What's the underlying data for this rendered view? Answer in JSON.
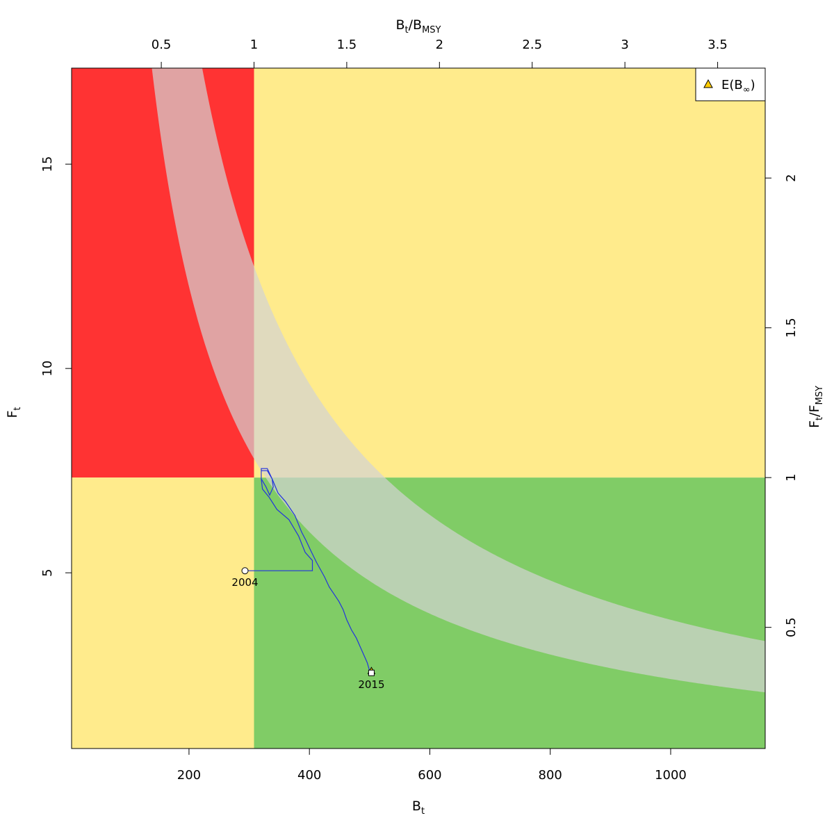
{
  "chart_data": {
    "type": "kobe",
    "x_axis_bottom": {
      "label": "B",
      "label_sub": "t",
      "range": [
        5,
        1157
      ],
      "ticks": [
        200,
        400,
        600,
        800,
        1000
      ]
    },
    "x_axis_top": {
      "label_parts": [
        "B",
        "t",
        "/B",
        "MSY"
      ],
      "ticks": [
        0.5,
        1,
        1.5,
        2,
        2.5,
        3,
        3.5
      ],
      "tick_labels": [
        "0.5",
        "1",
        "1.5",
        "2",
        "2.5",
        "3",
        "3.5"
      ],
      "bmsy": 308
    },
    "y_axis_left": {
      "label": "F",
      "label_sub": "t",
      "range": [
        0.7,
        17.35
      ],
      "ticks": [
        5,
        10,
        15
      ]
    },
    "y_axis_right": {
      "label_parts": [
        "F",
        "t",
        "/F",
        "MSY"
      ],
      "ticks": [
        0.5,
        1,
        1.5,
        2
      ],
      "tick_labels": [
        "0.5",
        "1",
        "1.5",
        "2"
      ],
      "fmsy": 7.33
    },
    "zones": [
      {
        "name": "overfished-overfishing",
        "color": "#ff3333"
      },
      {
        "name": "healthy",
        "color": "#80cc66"
      },
      {
        "name": "caution",
        "color": "#ffeb8c"
      }
    ],
    "msy_band": {
      "upper_constant": 3850,
      "lower_constant": 2400,
      "color": "#d3d3d3",
      "opacity": 0.7
    },
    "trajectory": {
      "color": "#2233dd",
      "points": [
        [
          293,
          5.05
        ],
        [
          405,
          5.05
        ],
        [
          405,
          5.3
        ],
        [
          393,
          5.5
        ],
        [
          382,
          5.9
        ],
        [
          366,
          6.3
        ],
        [
          346,
          6.55
        ],
        [
          333,
          6.85
        ],
        [
          322,
          7.05
        ],
        [
          320,
          7.3
        ],
        [
          320,
          7.5
        ],
        [
          330,
          7.5
        ],
        [
          338,
          7.3
        ],
        [
          340,
          7.1
        ],
        [
          334,
          6.9
        ],
        [
          328,
          7.1
        ],
        [
          320,
          7.3
        ],
        [
          320,
          7.55
        ],
        [
          330,
          7.55
        ],
        [
          338,
          7.3
        ],
        [
          348,
          6.95
        ],
        [
          360,
          6.75
        ],
        [
          376,
          6.4
        ],
        [
          387,
          6.0
        ],
        [
          394,
          5.8
        ],
        [
          402,
          5.55
        ],
        [
          412,
          5.25
        ],
        [
          425,
          4.9
        ],
        [
          433,
          4.65
        ],
        [
          440,
          4.5
        ],
        [
          449,
          4.3
        ],
        [
          456,
          4.1
        ],
        [
          462,
          3.85
        ],
        [
          470,
          3.6
        ],
        [
          478,
          3.4
        ],
        [
          484,
          3.2
        ],
        [
          490,
          3.0
        ],
        [
          496,
          2.8
        ],
        [
          500,
          2.6
        ],
        [
          503,
          2.55
        ]
      ]
    },
    "start_point": {
      "label": "2004",
      "x": 293,
      "y": 5.05
    },
    "end_point": {
      "label": "2015",
      "x": 503,
      "y": 2.55
    },
    "expected_point": {
      "x": 503,
      "y": 2.6
    },
    "legend": {
      "label_main": "E(B",
      "label_sub": "∞",
      "label_close": ")",
      "marker_color": "#ffcc00",
      "placement": "top-right"
    }
  }
}
